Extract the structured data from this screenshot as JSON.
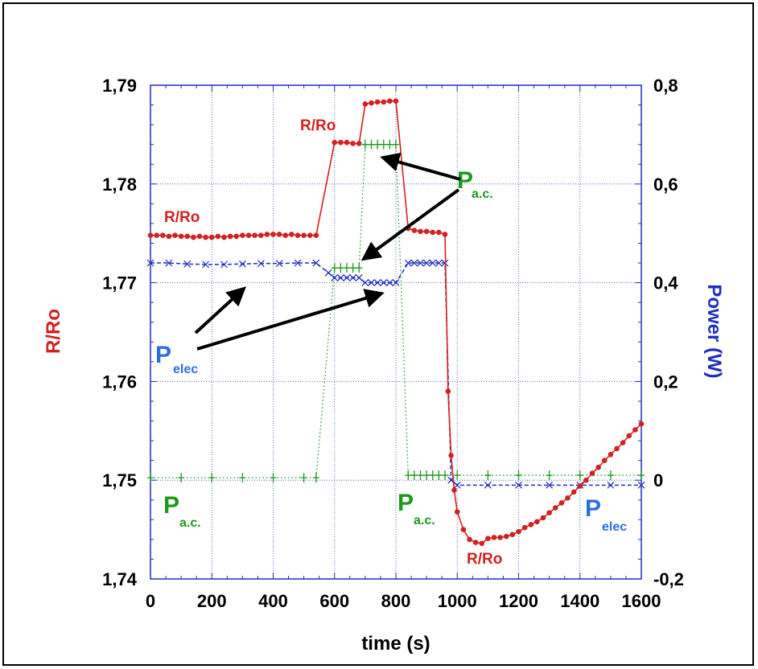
{
  "chart_data": {
    "type": "line",
    "xlabel": "time (s)",
    "ylabel_left": "R/Ro",
    "ylabel_right": "Power (W)",
    "xlim": [
      0,
      1600
    ],
    "ylim_left": [
      1.74,
      1.79
    ],
    "ylim_right": [
      -0.2,
      0.8
    ],
    "grid": true,
    "x_ticks": [
      "0",
      "200",
      "400",
      "600",
      "800",
      "1000",
      "1200",
      "1400",
      "1600"
    ],
    "y_left_ticks": [
      "1,74",
      "1,75",
      "1,76",
      "1,77",
      "1,78",
      "1,79"
    ],
    "y_right_ticks": [
      "-0,2",
      "0",
      "0,2",
      "0,4",
      "0,6",
      "0,8"
    ],
    "colors": {
      "rro": "#d42020",
      "pac": "#1a9a1a",
      "pelec": "#1f2fbf",
      "pelec_label": "#2a6fe0"
    },
    "series": [
      {
        "name": "R/Ro",
        "axis": "left",
        "points": [
          [
            0,
            1.7748
          ],
          [
            20,
            1.7748
          ],
          [
            40,
            1.7748
          ],
          [
            60,
            1.7747
          ],
          [
            80,
            1.7748
          ],
          [
            100,
            1.7747
          ],
          [
            120,
            1.7747
          ],
          [
            140,
            1.7746
          ],
          [
            160,
            1.7747
          ],
          [
            180,
            1.7746
          ],
          [
            200,
            1.7746
          ],
          [
            220,
            1.7747
          ],
          [
            240,
            1.7746
          ],
          [
            260,
            1.7747
          ],
          [
            280,
            1.7747
          ],
          [
            300,
            1.7748
          ],
          [
            320,
            1.7748
          ],
          [
            340,
            1.7748
          ],
          [
            360,
            1.7748
          ],
          [
            380,
            1.7749
          ],
          [
            400,
            1.7749
          ],
          [
            420,
            1.7749
          ],
          [
            440,
            1.7748
          ],
          [
            460,
            1.7749
          ],
          [
            480,
            1.7748
          ],
          [
            500,
            1.7748
          ],
          [
            520,
            1.7748
          ],
          [
            540,
            1.7748
          ],
          [
            600,
            1.7842
          ],
          [
            620,
            1.7842
          ],
          [
            640,
            1.7842
          ],
          [
            660,
            1.7841
          ],
          [
            680,
            1.7841
          ],
          [
            700,
            1.7881
          ],
          [
            720,
            1.7882
          ],
          [
            740,
            1.7883
          ],
          [
            760,
            1.7883
          ],
          [
            780,
            1.7884
          ],
          [
            800,
            1.7884
          ],
          [
            840,
            1.7755
          ],
          [
            860,
            1.7753
          ],
          [
            880,
            1.7752
          ],
          [
            900,
            1.7752
          ],
          [
            920,
            1.7751
          ],
          [
            940,
            1.7751
          ],
          [
            960,
            1.7749
          ],
          [
            970,
            1.759
          ],
          [
            980,
            1.7525
          ],
          [
            990,
            1.749
          ],
          [
            1000,
            1.7468
          ],
          [
            1020,
            1.745
          ],
          [
            1040,
            1.744
          ],
          [
            1060,
            1.7437
          ],
          [
            1080,
            1.7436
          ],
          [
            1100,
            1.7441
          ],
          [
            1120,
            1.7442
          ],
          [
            1140,
            1.7442
          ],
          [
            1160,
            1.7443
          ],
          [
            1180,
            1.7445
          ],
          [
            1200,
            1.7448
          ],
          [
            1220,
            1.7452
          ],
          [
            1240,
            1.7455
          ],
          [
            1260,
            1.7458
          ],
          [
            1280,
            1.7462
          ],
          [
            1300,
            1.7467
          ],
          [
            1320,
            1.7472
          ],
          [
            1340,
            1.7477
          ],
          [
            1360,
            1.7482
          ],
          [
            1380,
            1.7488
          ],
          [
            1400,
            1.7494
          ],
          [
            1420,
            1.75
          ],
          [
            1440,
            1.7507
          ],
          [
            1460,
            1.7513
          ],
          [
            1480,
            1.752
          ],
          [
            1500,
            1.7526
          ],
          [
            1520,
            1.7532
          ],
          [
            1540,
            1.7538
          ],
          [
            1560,
            1.7545
          ],
          [
            1580,
            1.7551
          ],
          [
            1600,
            1.7557
          ]
        ]
      },
      {
        "name": "Pa.c.",
        "axis": "right",
        "points": [
          [
            0,
            0.005
          ],
          [
            100,
            0.005
          ],
          [
            200,
            0.005
          ],
          [
            300,
            0.005
          ],
          [
            400,
            0.005
          ],
          [
            500,
            0.005
          ],
          [
            540,
            0.005
          ],
          [
            600,
            0.43
          ],
          [
            620,
            0.43
          ],
          [
            640,
            0.43
          ],
          [
            660,
            0.43
          ],
          [
            680,
            0.43
          ],
          [
            700,
            0.68
          ],
          [
            720,
            0.68
          ],
          [
            740,
            0.68
          ],
          [
            760,
            0.68
          ],
          [
            780,
            0.68
          ],
          [
            800,
            0.68
          ],
          [
            840,
            0.01
          ],
          [
            860,
            0.01
          ],
          [
            880,
            0.01
          ],
          [
            900,
            0.01
          ],
          [
            920,
            0.01
          ],
          [
            940,
            0.01
          ],
          [
            960,
            0.01
          ],
          [
            1000,
            0.01
          ],
          [
            1100,
            0.01
          ],
          [
            1200,
            0.01
          ],
          [
            1300,
            0.01
          ],
          [
            1400,
            0.01
          ],
          [
            1500,
            0.01
          ],
          [
            1600,
            0.01
          ]
        ]
      },
      {
        "name": "Pelec",
        "axis": "right",
        "points": [
          [
            0,
            0.44
          ],
          [
            60,
            0.44
          ],
          [
            120,
            0.438
          ],
          [
            180,
            0.437
          ],
          [
            240,
            0.437
          ],
          [
            300,
            0.438
          ],
          [
            360,
            0.439
          ],
          [
            420,
            0.439
          ],
          [
            480,
            0.44
          ],
          [
            540,
            0.44
          ],
          [
            580,
            0.42
          ],
          [
            600,
            0.41
          ],
          [
            620,
            0.41
          ],
          [
            640,
            0.41
          ],
          [
            660,
            0.41
          ],
          [
            680,
            0.41
          ],
          [
            700,
            0.4
          ],
          [
            720,
            0.4
          ],
          [
            740,
            0.4
          ],
          [
            760,
            0.4
          ],
          [
            780,
            0.4
          ],
          [
            800,
            0.4
          ],
          [
            840,
            0.44
          ],
          [
            860,
            0.44
          ],
          [
            880,
            0.44
          ],
          [
            900,
            0.44
          ],
          [
            920,
            0.44
          ],
          [
            940,
            0.44
          ],
          [
            960,
            0.44
          ],
          [
            980,
            0.0
          ],
          [
            1000,
            -0.01
          ],
          [
            1100,
            -0.01
          ],
          [
            1200,
            -0.01
          ],
          [
            1300,
            -0.01
          ],
          [
            1400,
            -0.01
          ],
          [
            1500,
            -0.01
          ],
          [
            1600,
            -0.01
          ]
        ]
      }
    ],
    "annotations": {
      "rro_label_1": "R/Ro",
      "rro_label_2": "R/Ro",
      "rro_label_3": "R/Ro",
      "pac_main": "P",
      "pac_sub": "a.c.",
      "pelec_main": "P",
      "pelec_sub": "elec"
    }
  }
}
